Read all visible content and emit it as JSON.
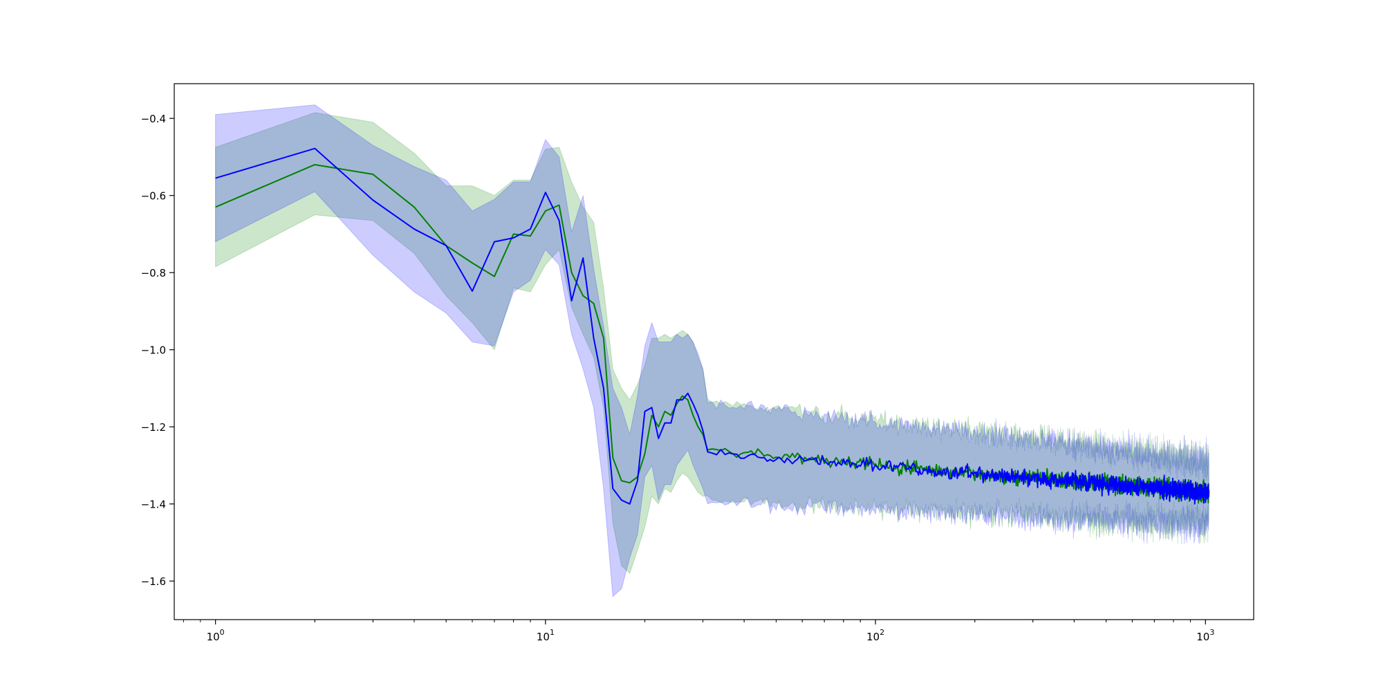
{
  "chart_data": {
    "type": "line",
    "title": "",
    "xlabel": "",
    "ylabel": "",
    "x_scale": "log",
    "xlim": [
      0.75,
      1400
    ],
    "ylim": [
      -1.7,
      -0.31
    ],
    "grid": false,
    "legend": "none",
    "x_ticks": [
      {
        "value": 1,
        "base": "10",
        "exp": "0"
      },
      {
        "value": 10,
        "base": "10",
        "exp": "1"
      },
      {
        "value": 100,
        "base": "10",
        "exp": "2"
      },
      {
        "value": 1000,
        "base": "10",
        "exp": "3"
      }
    ],
    "y_ticks": [
      {
        "value": -0.4,
        "label": "−0.4"
      },
      {
        "value": -0.6,
        "label": "−0.6"
      },
      {
        "value": -0.8,
        "label": "−0.8"
      },
      {
        "value": -1.0,
        "label": "−1.0"
      },
      {
        "value": -1.2,
        "label": "−1.2"
      },
      {
        "value": -1.4,
        "label": "−1.4"
      },
      {
        "value": -1.6,
        "label": "−1.6"
      }
    ],
    "noise_tail": {
      "from_x": 30,
      "to_x": 1024,
      "trend_start": -1.26,
      "trend_end": -1.37,
      "line_jitter_start": 0.01,
      "line_jitter_end": 0.022,
      "band_halfwidth_start": 0.13,
      "band_halfwidth_end": 0.085,
      "band_jitter": 0.03
    },
    "series": [
      {
        "color": "#008000",
        "band_color": "#008000",
        "band_opacity": 0.2,
        "x": [
          1,
          2,
          3,
          4,
          5,
          6,
          7,
          8,
          9,
          10,
          11,
          12,
          13,
          14,
          15,
          16,
          17,
          18,
          19,
          20,
          21,
          22,
          23,
          24,
          25,
          26,
          27,
          28,
          29,
          30
        ],
        "y": [
          -0.63,
          -0.52,
          -0.545,
          -0.63,
          -0.73,
          -0.775,
          -0.81,
          -0.7,
          -0.705,
          -0.64,
          -0.625,
          -0.8,
          -0.86,
          -0.88,
          -0.97,
          -1.28,
          -1.34,
          -1.345,
          -1.33,
          -1.27,
          -1.17,
          -1.2,
          -1.16,
          -1.17,
          -1.14,
          -1.12,
          -1.13,
          -1.17,
          -1.2,
          -1.22
        ],
        "lower": [
          -0.785,
          -0.65,
          -0.665,
          -0.75,
          -0.86,
          -0.93,
          -1.0,
          -0.84,
          -0.85,
          -0.78,
          -0.74,
          -0.89,
          -0.96,
          -1.02,
          -1.15,
          -1.45,
          -1.56,
          -1.58,
          -1.52,
          -1.46,
          -1.38,
          -1.4,
          -1.36,
          -1.37,
          -1.34,
          -1.32,
          -1.33,
          -1.35,
          -1.37,
          -1.38
        ],
        "upper": [
          -0.475,
          -0.385,
          -0.41,
          -0.49,
          -0.575,
          -0.575,
          -0.6,
          -0.56,
          -0.56,
          -0.48,
          -0.475,
          -0.565,
          -0.63,
          -0.67,
          -0.84,
          -1.05,
          -1.1,
          -1.13,
          -1.09,
          -1.04,
          -0.97,
          -0.97,
          -0.96,
          -0.97,
          -0.96,
          -0.95,
          -0.96,
          -0.98,
          -1.02,
          -1.05
        ]
      },
      {
        "color": "#0000ff",
        "band_color": "#0000ff",
        "band_opacity": 0.2,
        "x": [
          1,
          2,
          3,
          4,
          5,
          6,
          7,
          8,
          9,
          10,
          11,
          12,
          13,
          14,
          15,
          16,
          17,
          18,
          19,
          20,
          21,
          22,
          23,
          24,
          25,
          26,
          27,
          28,
          29,
          30
        ],
        "y": [
          -0.555,
          -0.478,
          -0.612,
          -0.687,
          -0.73,
          -0.848,
          -0.72,
          -0.71,
          -0.687,
          -0.592,
          -0.665,
          -0.873,
          -0.762,
          -0.97,
          -1.1,
          -1.36,
          -1.39,
          -1.4,
          -1.34,
          -1.16,
          -1.15,
          -1.23,
          -1.19,
          -1.19,
          -1.13,
          -1.13,
          -1.113,
          -1.14,
          -1.17,
          -1.21
        ],
        "lower": [
          -0.72,
          -0.59,
          -0.755,
          -0.85,
          -0.905,
          -0.98,
          -0.99,
          -0.85,
          -0.82,
          -0.74,
          -0.78,
          -0.96,
          -1.05,
          -1.15,
          -1.36,
          -1.64,
          -1.62,
          -1.54,
          -1.48,
          -1.33,
          -1.3,
          -1.39,
          -1.35,
          -1.35,
          -1.3,
          -1.28,
          -1.26,
          -1.3,
          -1.33,
          -1.36
        ],
        "upper": [
          -0.39,
          -0.365,
          -0.47,
          -0.525,
          -0.56,
          -0.64,
          -0.61,
          -0.565,
          -0.565,
          -0.455,
          -0.5,
          -0.695,
          -0.6,
          -0.79,
          -0.94,
          -1.1,
          -1.15,
          -1.22,
          -1.12,
          -0.99,
          -0.93,
          -0.98,
          -0.98,
          -0.98,
          -0.96,
          -0.97,
          -0.96,
          -0.98,
          -1.01,
          -1.05
        ]
      }
    ]
  }
}
